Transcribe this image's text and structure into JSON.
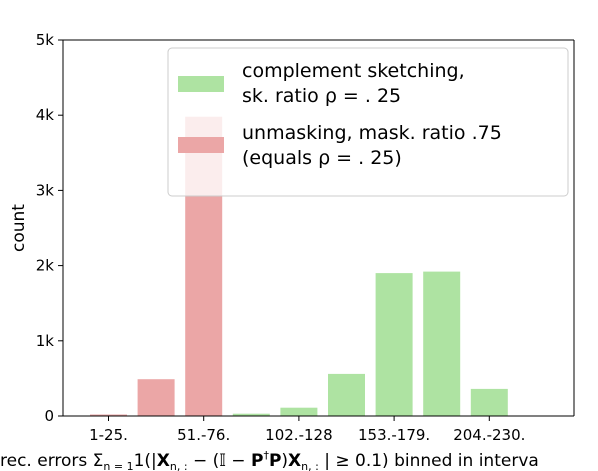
{
  "chart_data": {
    "type": "bar",
    "x_tick_labels": [
      "1-25.",
      "51.-76.",
      "102.-128",
      "153.-179.",
      "204.-230."
    ],
    "ylabel": "count",
    "xlabel": "rec. errors Σ",
    "xlabel_sub": "n = 1",
    "xlabel_mid": "1(|",
    "xlabel_X1": "X",
    "xlabel_sub1": "n, :",
    "xlabel_mid2": " − (𝕀 − ",
    "xlabel_P1": "P",
    "xlabel_dagger": "†",
    "xlabel_P2": "P",
    "xlabel_mid3": ")",
    "xlabel_X2": "X",
    "xlabel_sub2": "n, :",
    "xlabel_tail": " | ≥ 0.1) binned in interva",
    "yticks": [
      0,
      1000,
      2000,
      3000,
      4000,
      5000
    ],
    "ytick_labels": [
      "0",
      "1k",
      "2k",
      "3k",
      "4k",
      "5k"
    ],
    "ylim": [
      0,
      5000
    ],
    "grid": false,
    "legend_position": "top-right",
    "series": [
      {
        "name": "unmasking, mask. ratio .75 (equals ρ = .25)",
        "legend_line1": "unmasking, mask. ratio .75",
        "legend_line2": "(equals ρ = . 25)",
        "color": "#eba6a6",
        "bins": [
          0,
          1,
          2
        ],
        "values": [
          20,
          490,
          3980
        ]
      },
      {
        "name": "complement sketching, sk. ratio ρ = .25",
        "legend_line1": "complement sketching,",
        "legend_line2": "sk. ratio ρ = . 25",
        "color": "#aee3a2",
        "bins": [
          3,
          4,
          5,
          6,
          7,
          8
        ],
        "values": [
          30,
          110,
          560,
          1900,
          1920,
          360
        ]
      }
    ]
  }
}
